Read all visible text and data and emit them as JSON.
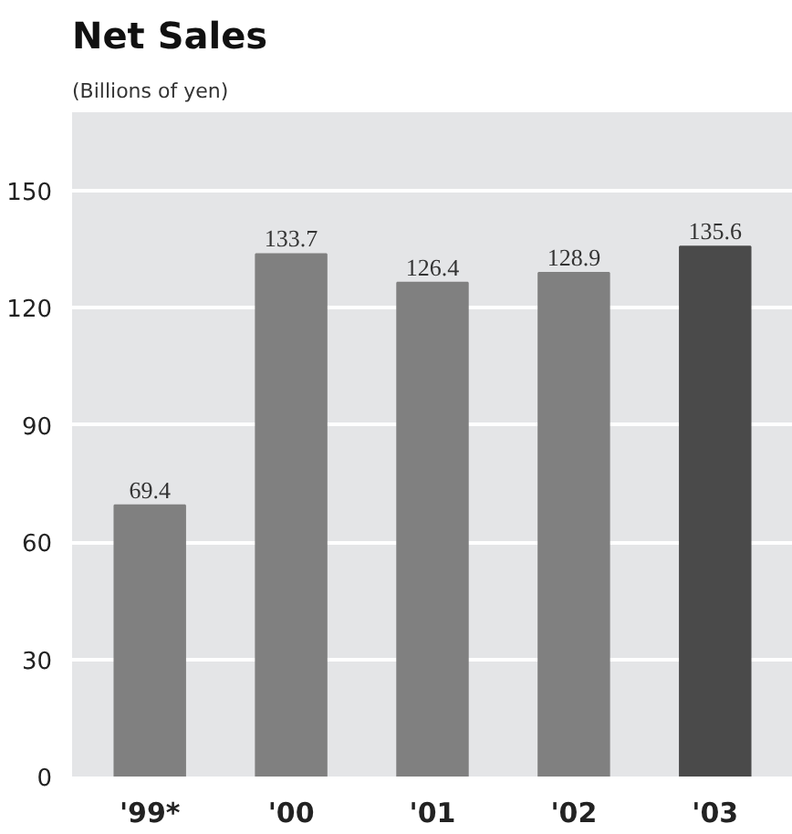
{
  "chart_data": {
    "type": "bar",
    "title": "Net Sales",
    "subtitle": "(Billions of yen)",
    "categories": [
      "'99*",
      "'00",
      "'01",
      "'02",
      "'03"
    ],
    "values": [
      69.4,
      133.7,
      126.4,
      128.9,
      135.6
    ],
    "colors": [
      "#808080",
      "#808080",
      "#808080",
      "#808080",
      "#4a4a4a"
    ],
    "ylim": [
      0,
      170
    ],
    "yticks": [
      0,
      30,
      60,
      90,
      120,
      150
    ],
    "grid": "y",
    "data_labels": true
  }
}
